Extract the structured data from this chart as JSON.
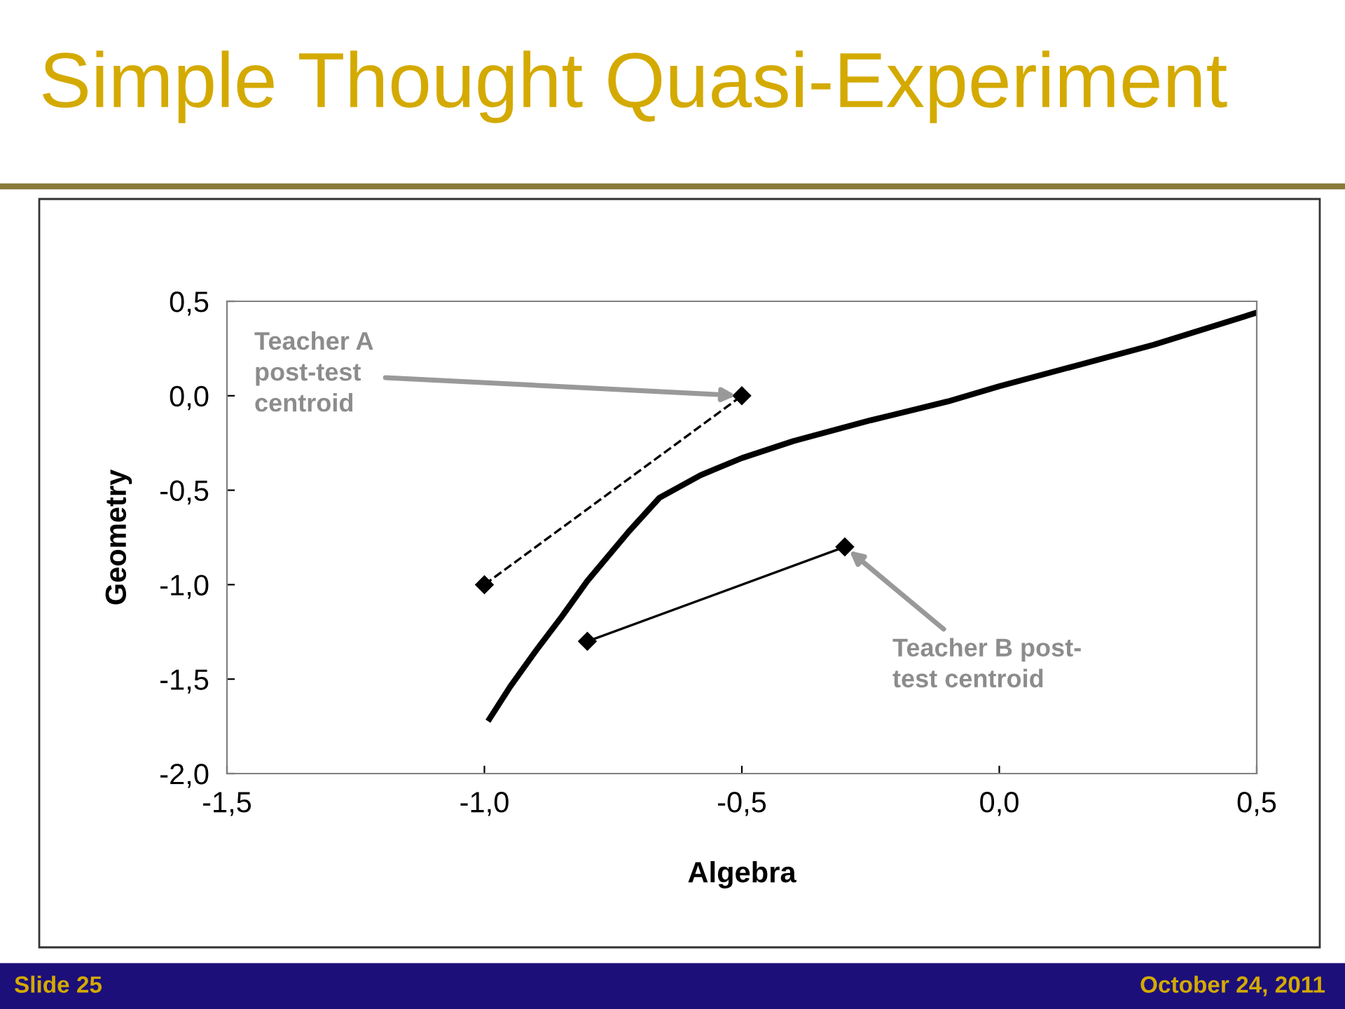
{
  "chart_data": {
    "type": "line",
    "title": "Simple Thought Quasi-Experiment",
    "xlabel": "Algebra",
    "ylabel": "Geometry",
    "series": [
      {
        "color": "#000000",
        "x": [
          -0.99,
          -0.95,
          -0.9,
          -0.85,
          -0.8,
          -0.72,
          -0.66,
          -0.58,
          -0.5,
          -0.4,
          -0.25,
          -0.1,
          0.0,
          0.15,
          0.3,
          0.5
        ],
        "values": [
          -1.71,
          -1.54,
          -1.35,
          -1.17,
          -0.98,
          -0.72,
          -0.54,
          -0.42,
          -0.33,
          -0.24,
          -0.13,
          -0.03,
          0.05,
          0.16,
          0.27,
          0.44
        ],
        "marker": "none",
        "line_style": "solid"
      },
      {
        "color": "#000000",
        "x": [
          -1.0,
          -0.5
        ],
        "values": [
          -1.0,
          0.0
        ],
        "marker": "diamond",
        "line_style": "dashed"
      },
      {
        "color": "#000000",
        "x": [
          -0.8,
          -0.3
        ],
        "values": [
          -1.3,
          -0.8
        ],
        "marker": "diamond",
        "line_style": "solid"
      }
    ],
    "xlim": [
      -1.5,
      0.5
    ],
    "ylim": [
      -2.0,
      0.5
    ],
    "xticks": [
      {
        "value": -1.5,
        "label": "-1,5"
      },
      {
        "value": -1.0,
        "label": "-1,0"
      },
      {
        "value": -0.5,
        "label": "-0,5"
      },
      {
        "value": 0.0,
        "label": "0,0"
      },
      {
        "value": 0.5,
        "label": "0,5"
      }
    ],
    "yticks": [
      {
        "value": -2.0,
        "label": "-2,0"
      },
      {
        "value": -1.5,
        "label": "-1,5"
      },
      {
        "value": -1.0,
        "label": "-1,0"
      },
      {
        "value": -0.5,
        "label": "-0,5"
      },
      {
        "value": 0.0,
        "label": "0,0"
      },
      {
        "value": 0.5,
        "label": "0,5"
      }
    ],
    "grid": false,
    "legend": false,
    "annotations": [
      {
        "text": "Teacher A\npost-test\ncentroid",
        "x": -0.5,
        "y": 0.0
      },
      {
        "text": "Teacher B post-\ntest centroid",
        "x": -0.3,
        "y": -0.8
      },
      "Slide 25",
      "October 24, 2011"
    ]
  }
}
